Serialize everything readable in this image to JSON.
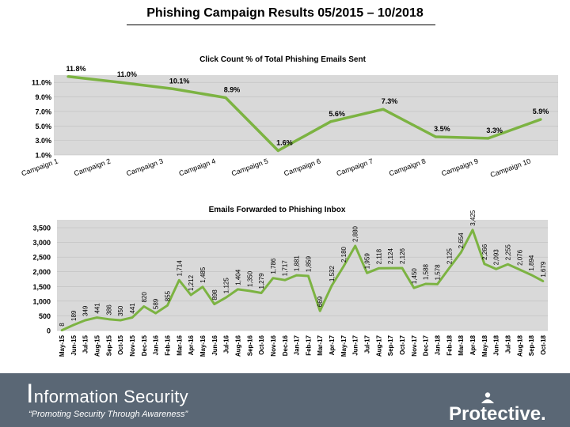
{
  "page": {
    "title": "Phishing Campaign Results 05/2015 – 10/2018"
  },
  "footer": {
    "title_first_letter": "I",
    "title_rest": "nformation Security",
    "tagline": "“Promoting Security Through Awareness”",
    "logo_text": "Protective."
  },
  "colors": {
    "line": "#7cb342",
    "plot_bg": "#d9d9d9",
    "footer": "#5a6775",
    "grid": "#bfbfbf"
  },
  "chart_data": [
    {
      "type": "line",
      "title": "Click Count % of Total Phishing Emails Sent",
      "categories": [
        "Campaign 1",
        "Campaign 2",
        "Campaign 3",
        "Campaign 4",
        "Campaign 5",
        "Campaign 6",
        "Campaign 7",
        "Campaign 8",
        "Campaign 9",
        "Campaign 10"
      ],
      "values": [
        11.8,
        11.0,
        10.1,
        8.9,
        1.6,
        5.6,
        7.3,
        3.5,
        3.3,
        5.9
      ],
      "data_labels": [
        "11.8%",
        "11.0%",
        "10.1%",
        "8.9%",
        "1.6%",
        "5.6%",
        "7.3%",
        "3.5%",
        "3.3%",
        "5.9%"
      ],
      "y_ticks": [
        1.0,
        3.0,
        5.0,
        7.0,
        9.0,
        11.0
      ],
      "y_tick_labels": [
        "1.0%",
        "3.0%",
        "5.0%",
        "7.0%",
        "9.0%",
        "11.0%"
      ],
      "ylim": [
        1.0,
        12.0
      ],
      "grid": true,
      "legend": "none"
    },
    {
      "type": "line",
      "title": "Emails Forwarded to Phishing Inbox",
      "categories": [
        "May-15",
        "Jun-15",
        "Jul-15",
        "Aug-15",
        "Sep-15",
        "Oct-15",
        "Nov-15",
        "Dec-15",
        "Jan-16",
        "Feb-16",
        "Mar-16",
        "Apr-16",
        "May-16",
        "Jun-16",
        "Jul-16",
        "Aug-16",
        "Sep-16",
        "Oct-16",
        "Nov-16",
        "Dec-16",
        "Jan-17",
        "Feb-17",
        "Mar-17",
        "Apr-17",
        "May-17",
        "Jun-17",
        "Jul-17",
        "Aug-17",
        "Sep-17",
        "Oct-17",
        "Nov-17",
        "Dec-17",
        "Jan-18",
        "Feb-18",
        "Mar-18",
        "Apr-18",
        "May-18",
        "Jun-18",
        "Jul-18",
        "Aug-18",
        "Sep-18",
        "Oct-18"
      ],
      "values": [
        8,
        189,
        349,
        441,
        386,
        350,
        441,
        820,
        589,
        855,
        1714,
        1212,
        1485,
        898,
        1125,
        1404,
        1350,
        1279,
        1786,
        1717,
        1881,
        1859,
        669,
        1532,
        2180,
        2880,
        1959,
        2118,
        2124,
        2126,
        1450,
        1588,
        1578,
        2125,
        2654,
        3425,
        2266,
        2093,
        2255,
        2076,
        1894,
        1679
      ],
      "data_labels": [
        "8",
        "189",
        "349",
        "441",
        "386",
        "350",
        "441",
        "820",
        "589",
        "855",
        "1,714",
        "1,212",
        "1,485",
        "898",
        "1,125",
        "1,404",
        "1,350",
        "1,279",
        "1,786",
        "1,717",
        "1,881",
        "1,859",
        "669",
        "1,532",
        "2,180",
        "2,880",
        "1,959",
        "2,118",
        "2,124",
        "2,126",
        "1,450",
        "1,588",
        "1,578",
        "2,125",
        "2,654",
        "3,425",
        "2,266",
        "2,093",
        "2,255",
        "2,076",
        "1,894",
        "1,679"
      ],
      "y_ticks": [
        0,
        500,
        1000,
        1500,
        2000,
        2500,
        3000,
        3500
      ],
      "y_tick_labels": [
        "0",
        "500",
        "1,000",
        "1,500",
        "2,000",
        "2,500",
        "3,000",
        "3,500"
      ],
      "ylim": [
        0,
        3500
      ],
      "grid": true,
      "legend": "none"
    }
  ]
}
